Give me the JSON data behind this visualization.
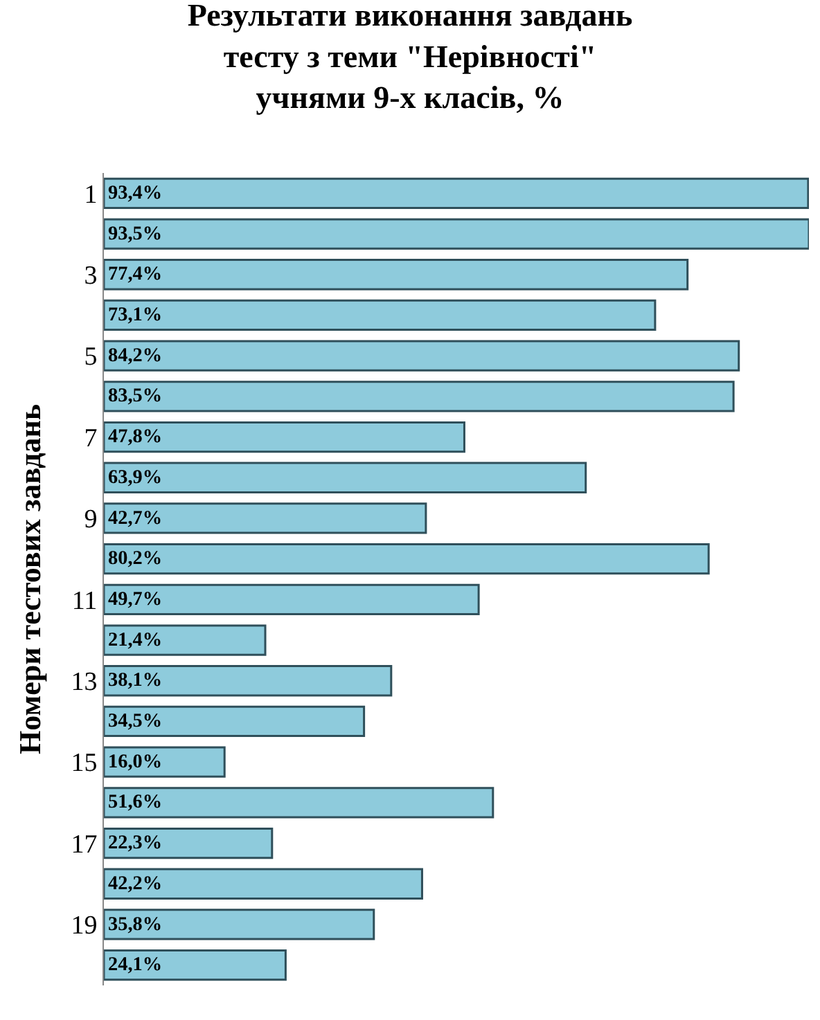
{
  "chart_data": {
    "type": "bar",
    "orientation": "horizontal",
    "title": "Результати виконання завдань\nтесту з теми \"Нерівності\"\nучнями 9-х класів, %",
    "ylabel": "Номери тестових завдань",
    "categories": [
      "1",
      null,
      "3",
      null,
      "5",
      null,
      "7",
      null,
      "9",
      null,
      "11",
      null,
      "13",
      null,
      "15",
      null,
      "17",
      null,
      "19",
      null
    ],
    "values": [
      93.4,
      93.5,
      77.4,
      73.1,
      84.2,
      83.5,
      47.8,
      63.9,
      42.7,
      80.2,
      49.7,
      21.4,
      38.1,
      34.5,
      16.0,
      51.6,
      22.3,
      42.2,
      35.8,
      24.1
    ],
    "value_labels": [
      "93,4%",
      "93,5%",
      "77,4%",
      "73,1%",
      "84,2%",
      "83,5%",
      "47,8%",
      "63,9%",
      "42,7%",
      "80,2%",
      "49,7%",
      "21,4%",
      "38,1%",
      "34,5%",
      "16,0%",
      "51,6%",
      "22,3%",
      "42,2%",
      "35,8%",
      "24,1%"
    ],
    "color": "#8ecbdc"
  }
}
